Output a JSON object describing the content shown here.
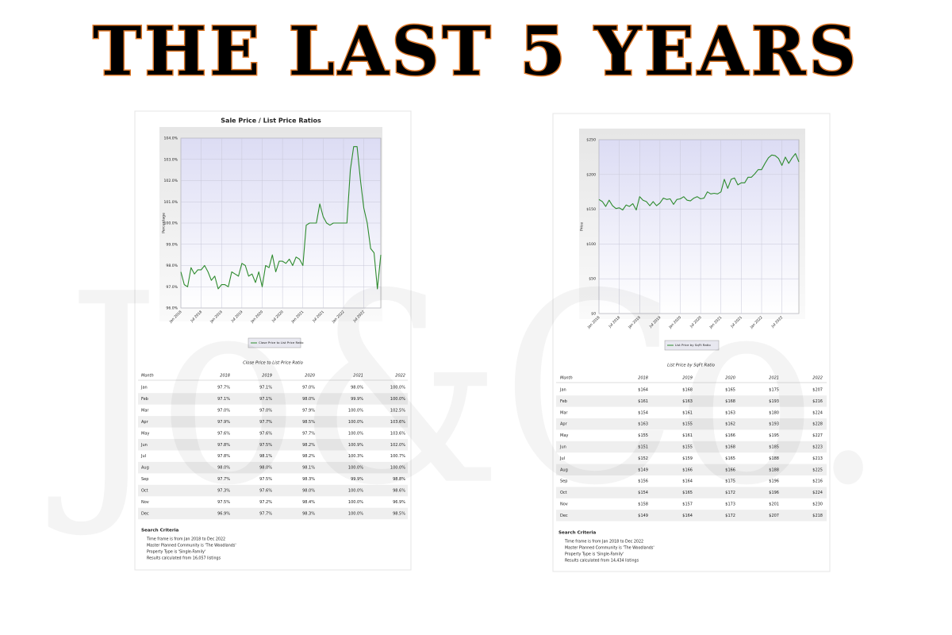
{
  "title": "THE LAST 5 YEARS",
  "watermark": "Jo&Co.",
  "chart_data": [
    {
      "type": "line",
      "title": "Sale Price / List Price Ratios",
      "y_label": "Percentage",
      "categories": [
        "Jan 2018",
        null,
        null,
        null,
        null,
        null,
        "Jul 2018",
        null,
        null,
        null,
        null,
        null,
        "Jan 2019",
        null,
        null,
        null,
        null,
        null,
        "Jul 2019",
        null,
        null,
        null,
        null,
        null,
        "Jan 2020",
        null,
        null,
        null,
        null,
        null,
        "Jul 2020",
        null,
        null,
        null,
        null,
        null,
        "Jan 2021",
        null,
        null,
        null,
        null,
        null,
        "Jul 2021",
        null,
        null,
        null,
        null,
        null,
        "Jan 2022",
        null,
        null,
        null,
        null,
        null,
        "Jul 2022",
        null,
        null,
        null,
        null,
        null
      ],
      "series": [
        {
          "name": "Close Price to List Price Ratio",
          "color": "#2e8b2e",
          "values": [
            97.7,
            97.1,
            97.0,
            97.9,
            97.6,
            97.8,
            97.8,
            98.0,
            97.7,
            97.3,
            97.5,
            96.9,
            97.1,
            97.1,
            97.0,
            97.7,
            97.6,
            97.5,
            98.1,
            98.0,
            97.5,
            97.6,
            97.2,
            97.7,
            97.0,
            98.0,
            97.9,
            98.5,
            97.7,
            98.2,
            98.2,
            98.1,
            98.3,
            98.0,
            98.4,
            98.3,
            98.0,
            99.9,
            100.0,
            100.0,
            100.0,
            100.9,
            100.3,
            100.0,
            99.9,
            100.0,
            100.0,
            100.0,
            100.0,
            100.0,
            102.5,
            103.6,
            103.6,
            102.0,
            100.7,
            100.0,
            98.8,
            98.6,
            96.9,
            98.5
          ]
        }
      ],
      "ylim": [
        96,
        104
      ],
      "yticks": [
        {
          "value": 96,
          "label": "96.0%"
        },
        {
          "value": 97,
          "label": "97.0%"
        },
        {
          "value": 98,
          "label": "98.0%"
        },
        {
          "value": 99,
          "label": "99.0%"
        },
        {
          "value": 100,
          "label": "100.0%"
        },
        {
          "value": 101,
          "label": "101.0%"
        },
        {
          "value": 102,
          "label": "102.0%"
        },
        {
          "value": 103,
          "label": "103.0%"
        },
        {
          "value": 104,
          "label": "104.0%"
        }
      ],
      "grid": true
    },
    {
      "type": "line",
      "y_label": "Price",
      "categories": [
        "Jan 2018",
        null,
        null,
        null,
        null,
        null,
        "Jul 2018",
        null,
        null,
        null,
        null,
        null,
        "Jan 2019",
        null,
        null,
        null,
        null,
        null,
        "Jul 2019",
        null,
        null,
        null,
        null,
        null,
        "Jan 2020",
        null,
        null,
        null,
        null,
        null,
        "Jul 2020",
        null,
        null,
        null,
        null,
        null,
        "Jan 2021",
        null,
        null,
        null,
        null,
        null,
        "Jul 2021",
        null,
        null,
        null,
        null,
        null,
        "Jan 2022",
        null,
        null,
        null,
        null,
        null,
        "Jul 2022",
        null,
        null,
        null,
        null,
        null
      ],
      "series": [
        {
          "name": "List Price by SqFt Ratio",
          "color": "#2e8b2e",
          "values": [
            164,
            161,
            154,
            163,
            155,
            151,
            152,
            149,
            156,
            154,
            158,
            149,
            168,
            163,
            161,
            155,
            161,
            155,
            159,
            166,
            164,
            165,
            157,
            164,
            165,
            168,
            163,
            162,
            166,
            168,
            165,
            166,
            175,
            172,
            173,
            172,
            175,
            193,
            180,
            193,
            195,
            185,
            188,
            188,
            196,
            196,
            201,
            207,
            207,
            216,
            224,
            228,
            227,
            223,
            213,
            225,
            216,
            224,
            230,
            218
          ]
        }
      ],
      "ylim": [
        0,
        250
      ],
      "yticks": [
        {
          "value": 0,
          "label": "$0"
        },
        {
          "value": 50,
          "label": "$50"
        },
        {
          "value": 100,
          "label": "$100"
        },
        {
          "value": 150,
          "label": "$150"
        },
        {
          "value": 200,
          "label": "$200"
        },
        {
          "value": 250,
          "label": "$250"
        }
      ],
      "grid": true
    }
  ],
  "tables": [
    {
      "title": "Close Price to List Price Ratio",
      "columns": [
        "Month",
        "2018",
        "2019",
        "2020",
        "2021",
        "2022"
      ],
      "rows": [
        [
          "Jan",
          "97.7%",
          "97.1%",
          "97.0%",
          "98.0%",
          "100.0%"
        ],
        [
          "Feb",
          "97.1%",
          "97.1%",
          "98.0%",
          "99.9%",
          "100.0%"
        ],
        [
          "Mar",
          "97.0%",
          "97.0%",
          "97.9%",
          "100.0%",
          "102.5%"
        ],
        [
          "Apr",
          "97.9%",
          "97.7%",
          "98.5%",
          "100.0%",
          "103.6%"
        ],
        [
          "May",
          "97.6%",
          "97.6%",
          "97.7%",
          "100.0%",
          "103.6%"
        ],
        [
          "Jun",
          "97.8%",
          "97.5%",
          "98.2%",
          "100.9%",
          "102.0%"
        ],
        [
          "Jul",
          "97.8%",
          "98.1%",
          "98.2%",
          "100.3%",
          "100.7%"
        ],
        [
          "Aug",
          "98.0%",
          "98.0%",
          "98.1%",
          "100.0%",
          "100.0%"
        ],
        [
          "Sep",
          "97.7%",
          "97.5%",
          "98.3%",
          "99.9%",
          "98.8%"
        ],
        [
          "Oct",
          "97.3%",
          "97.6%",
          "98.0%",
          "100.0%",
          "98.6%"
        ],
        [
          "Nov",
          "97.5%",
          "97.2%",
          "98.4%",
          "100.0%",
          "96.9%"
        ],
        [
          "Dec",
          "96.9%",
          "97.7%",
          "98.3%",
          "100.0%",
          "98.5%"
        ]
      ]
    },
    {
      "title": "List Price by SqFt Ratio",
      "columns": [
        "Month",
        "2018",
        "2019",
        "2020",
        "2021",
        "2022"
      ],
      "rows": [
        [
          "Jan",
          "$164",
          "$168",
          "$165",
          "$175",
          "$207"
        ],
        [
          "Feb",
          "$161",
          "$163",
          "$168",
          "$193",
          "$216"
        ],
        [
          "Mar",
          "$154",
          "$161",
          "$163",
          "$180",
          "$224"
        ],
        [
          "Apr",
          "$163",
          "$155",
          "$162",
          "$193",
          "$228"
        ],
        [
          "May",
          "$155",
          "$161",
          "$166",
          "$195",
          "$227"
        ],
        [
          "Jun",
          "$151",
          "$155",
          "$168",
          "$185",
          "$223"
        ],
        [
          "Jul",
          "$152",
          "$159",
          "$165",
          "$188",
          "$213"
        ],
        [
          "Aug",
          "$149",
          "$166",
          "$166",
          "$188",
          "$225"
        ],
        [
          "Sep",
          "$156",
          "$164",
          "$175",
          "$196",
          "$216"
        ],
        [
          "Oct",
          "$154",
          "$165",
          "$172",
          "$196",
          "$224"
        ],
        [
          "Nov",
          "$158",
          "$157",
          "$173",
          "$201",
          "$230"
        ],
        [
          "Dec",
          "$149",
          "$164",
          "$172",
          "$207",
          "$218"
        ]
      ]
    }
  ],
  "criteria": [
    {
      "title": "Search Criteria",
      "lines": [
        "Time frame is from Jan 2018 to Dec 2022",
        "Master Planned Community is 'The Woodlands'",
        "Property Type is 'Single-Family'",
        "Results calculated from 16,057 listings"
      ]
    },
    {
      "title": "Search Criteria",
      "lines": [
        "Time frame is from Jan 2018 to Dec 2022",
        "Master Planned Community is 'The Woodlands'",
        "Property Type is 'Single-Family'",
        "Results calculated from 14,434 listings"
      ]
    }
  ]
}
